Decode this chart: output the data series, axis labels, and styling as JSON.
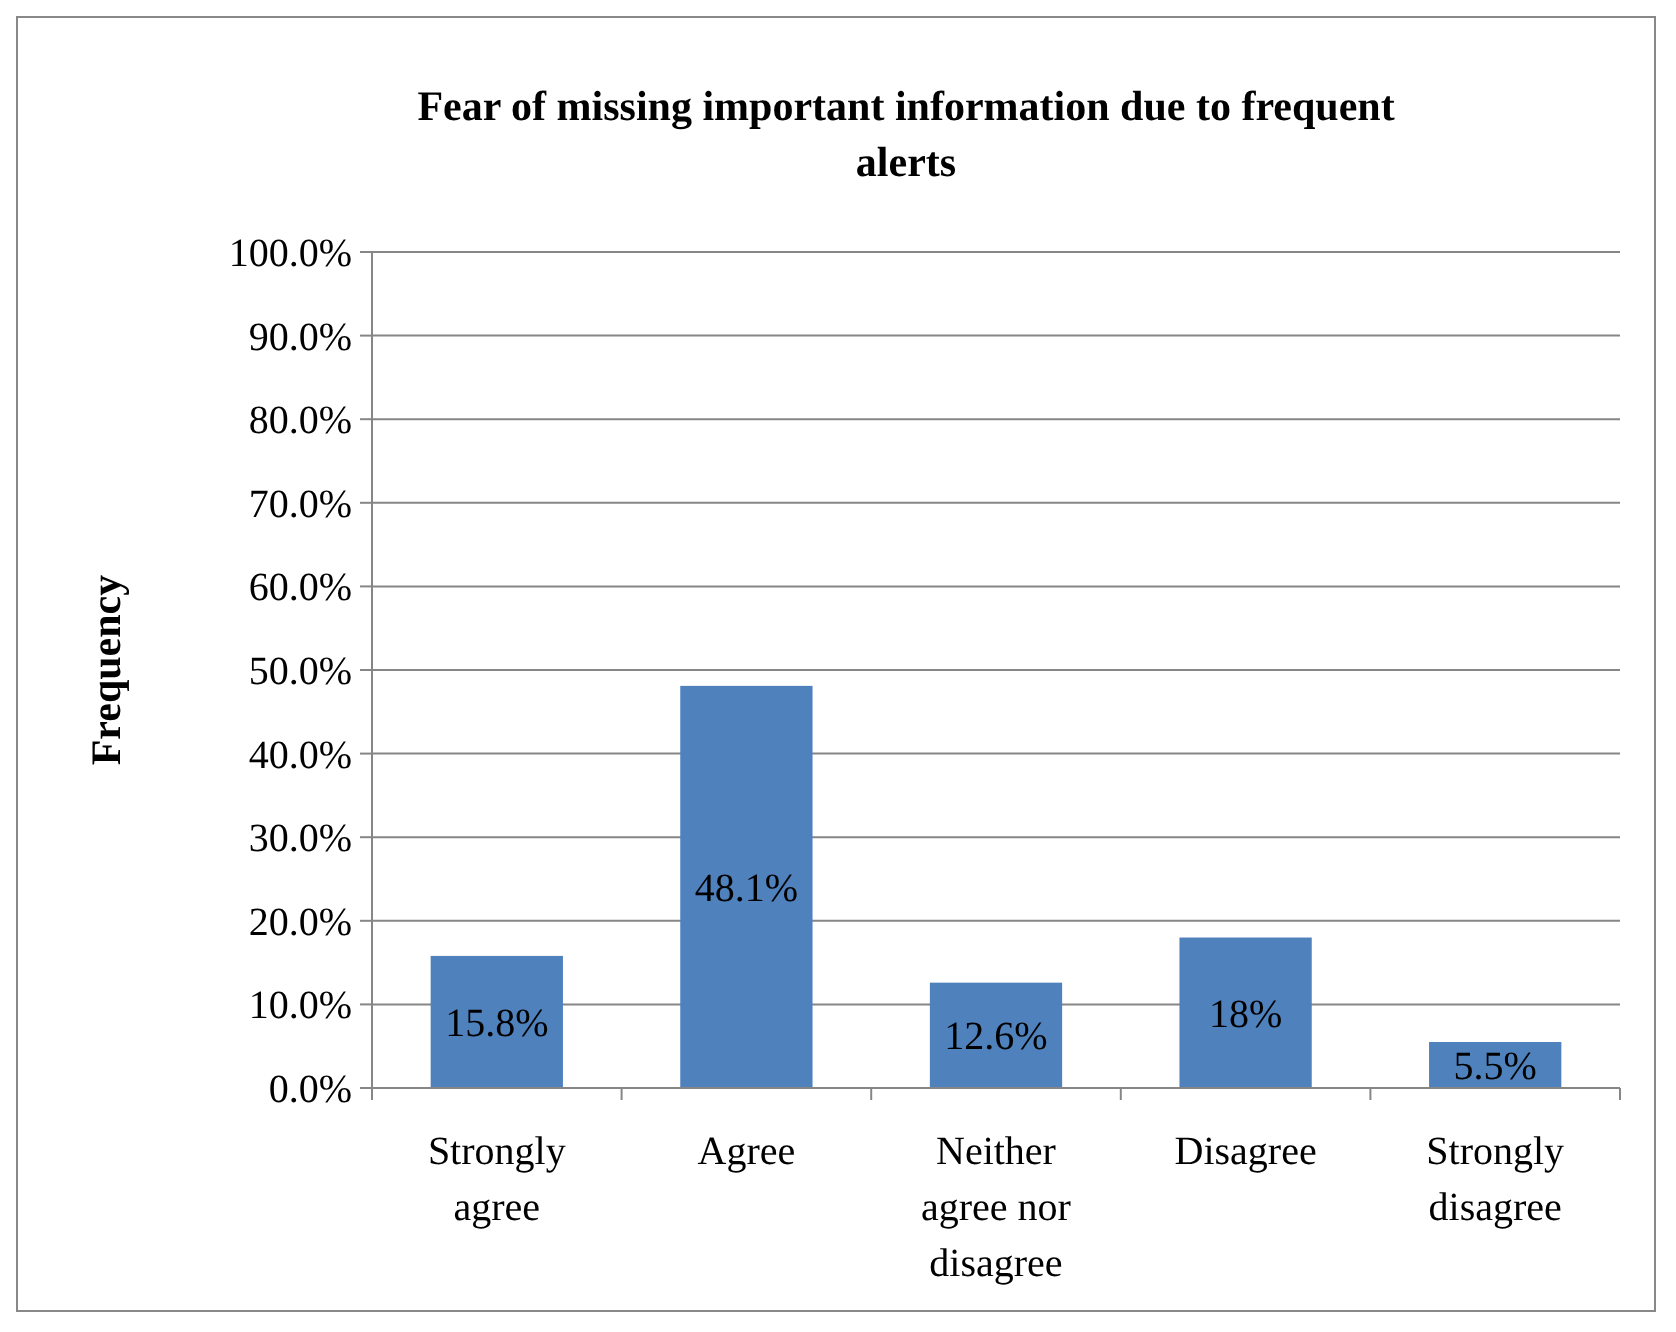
{
  "chart_data": {
    "type": "bar",
    "title": "Fear of missing important information due to frequent alerts",
    "ylabel": "Frequency",
    "categories": [
      "Strongly agree",
      "Agree",
      "Neither agree nor disagree",
      "Disagree",
      "Strongly disagree"
    ],
    "values": [
      15.8,
      48.1,
      12.6,
      18,
      5.5
    ],
    "color": "#4f81bd",
    "ylim": [
      0,
      100
    ],
    "yticks": [
      {
        "value": 0,
        "label": "0.0%"
      },
      {
        "value": 10,
        "label": "10.0%"
      },
      {
        "value": 20,
        "label": "20.0%"
      },
      {
        "value": 30,
        "label": "30.0%"
      },
      {
        "value": 40,
        "label": "40.0%"
      },
      {
        "value": 50,
        "label": "50.0%"
      },
      {
        "value": 60,
        "label": "60.0%"
      },
      {
        "value": 70,
        "label": "70.0%"
      },
      {
        "value": 80,
        "label": "80.0%"
      },
      {
        "value": 90,
        "label": "90.0%"
      },
      {
        "value": 100,
        "label": "100.0%"
      }
    ],
    "grid": "y",
    "value_labels": [
      "15.8%",
      "48.1%",
      "12.6%",
      "18%",
      "5.5%"
    ]
  }
}
